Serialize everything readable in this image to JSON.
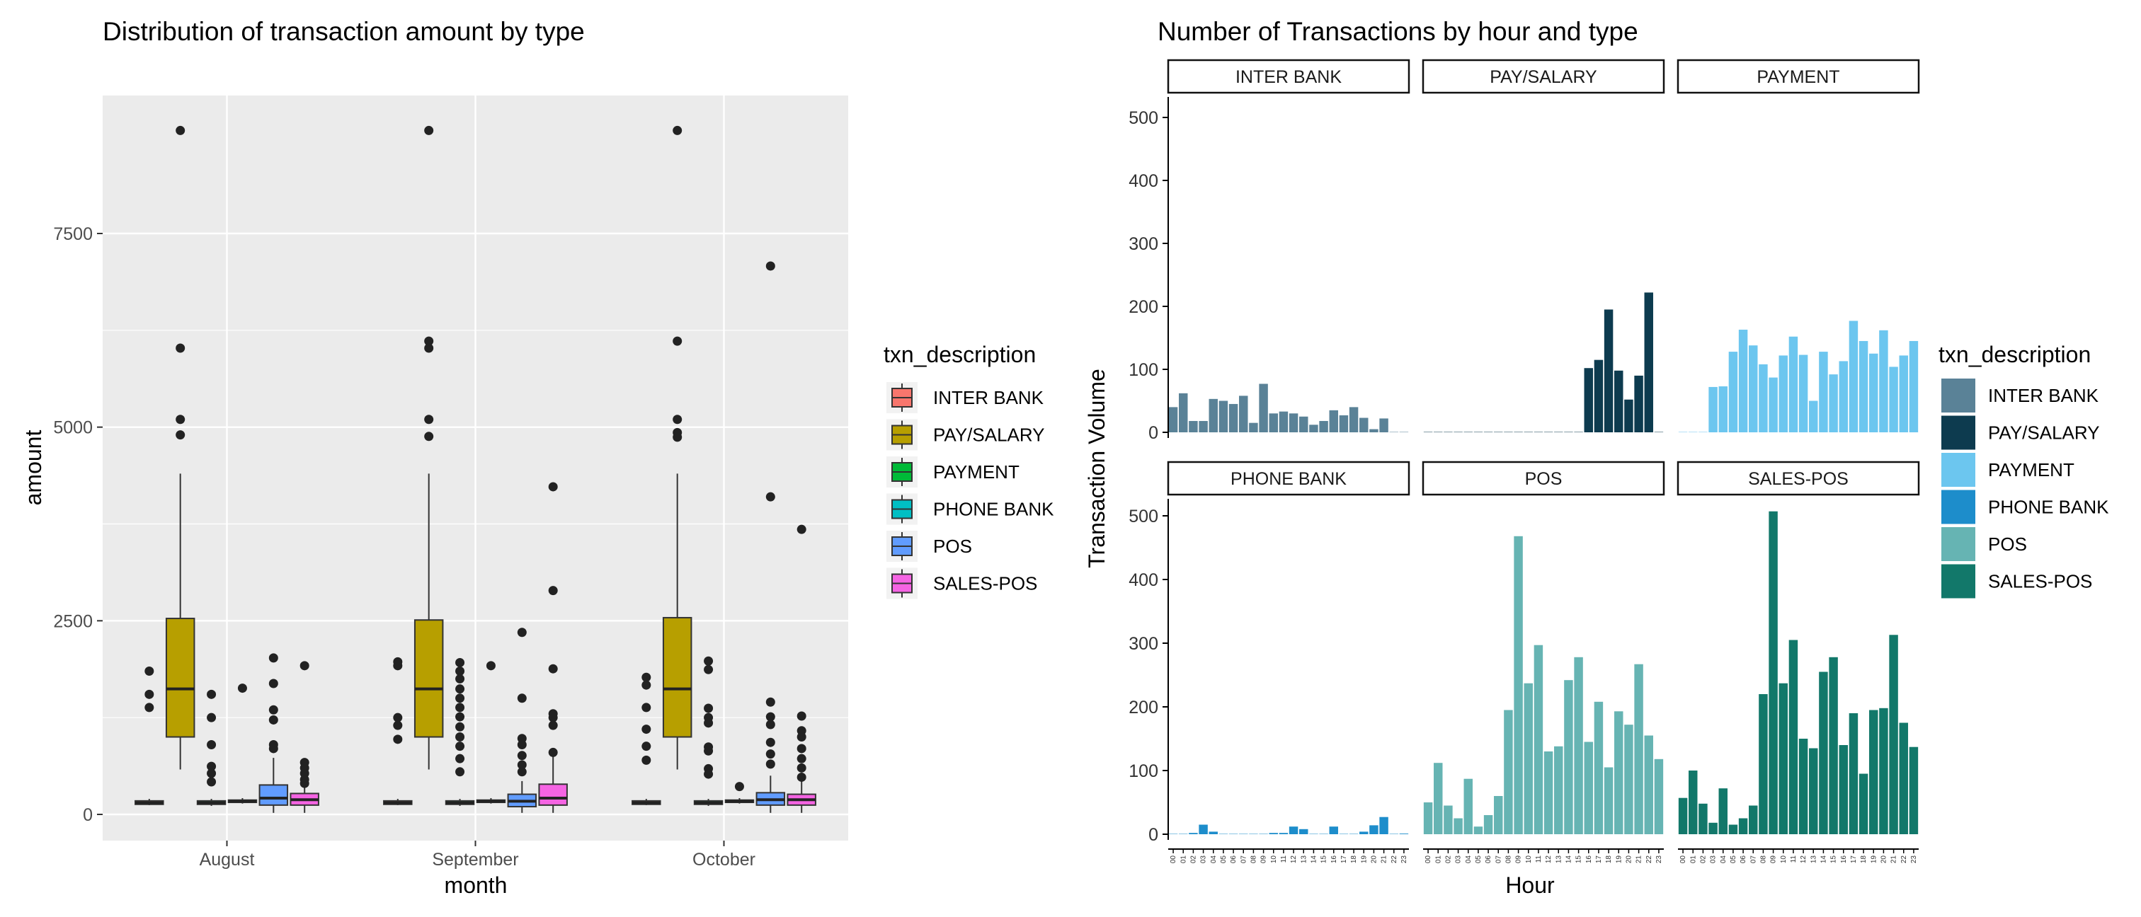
{
  "chart_data": [
    {
      "type": "boxplot",
      "title": "Distribution of transaction amount by type",
      "xlabel": "month",
      "ylabel": "amount",
      "ylim": [
        -250,
        9200
      ],
      "yticks": [
        0,
        2500,
        5000,
        7500
      ],
      "categories": [
        "August",
        "September",
        "October"
      ],
      "grid": "on (grey panel, white lines)",
      "legend": {
        "position": "right",
        "title": "txn_description",
        "items": [
          {
            "label": "INTER BANK",
            "color": "#F8766D"
          },
          {
            "label": "PAY/SALARY",
            "color": "#B79F00"
          },
          {
            "label": "PAYMENT",
            "color": "#00BA38"
          },
          {
            "label": "PHONE BANK",
            "color": "#00BFC4"
          },
          {
            "label": "POS",
            "color": "#619CFF"
          },
          {
            "label": "SALES-POS",
            "color": "#F564E3"
          }
        ]
      },
      "boxes": [
        {
          "month": "August",
          "type": "INTER BANK",
          "min": 120,
          "q1": 130,
          "median": 150,
          "q3": 175,
          "max": 200,
          "outliers": [
            1850,
            1550,
            1380
          ]
        },
        {
          "month": "August",
          "type": "PAY/SALARY",
          "min": 580,
          "q1": 1000,
          "median": 1620,
          "q3": 2530,
          "max": 4400,
          "outliers": [
            8830,
            6020,
            5100,
            4900
          ]
        },
        {
          "month": "August",
          "type": "PAYMENT",
          "min": 110,
          "q1": 130,
          "median": 150,
          "q3": 175,
          "max": 200,
          "outliers": [
            1550,
            1250,
            900,
            620,
            530,
            420
          ]
        },
        {
          "month": "August",
          "type": "PHONE BANK",
          "min": 140,
          "q1": 155,
          "median": 170,
          "q3": 185,
          "max": 210,
          "outliers": [
            1630
          ]
        },
        {
          "month": "August",
          "type": "POS",
          "min": 20,
          "q1": 120,
          "median": 210,
          "q3": 380,
          "max": 730,
          "outliers": [
            2020,
            1690,
            1350,
            1220,
            900,
            850
          ]
        },
        {
          "month": "August",
          "type": "SALES-POS",
          "min": 20,
          "q1": 120,
          "median": 190,
          "q3": 270,
          "max": 360,
          "outliers": [
            1920,
            670,
            600,
            530,
            450,
            400
          ]
        },
        {
          "month": "September",
          "type": "INTER BANK",
          "min": 120,
          "q1": 130,
          "median": 150,
          "q3": 175,
          "max": 200,
          "outliers": [
            1970,
            1920,
            1250,
            1150,
            970
          ]
        },
        {
          "month": "September",
          "type": "PAY/SALARY",
          "min": 580,
          "q1": 1000,
          "median": 1620,
          "q3": 2510,
          "max": 4400,
          "outliers": [
            8830,
            6110,
            6020,
            5100,
            4880
          ]
        },
        {
          "month": "September",
          "type": "PAYMENT",
          "min": 110,
          "q1": 130,
          "median": 150,
          "q3": 175,
          "max": 200,
          "outliers": [
            1960,
            1850,
            1750,
            1620,
            1500,
            1380,
            1260,
            1130,
            1000,
            880,
            720,
            550
          ]
        },
        {
          "month": "September",
          "type": "PHONE BANK",
          "min": 140,
          "q1": 155,
          "median": 170,
          "q3": 185,
          "max": 210,
          "outliers": [
            1920
          ]
        },
        {
          "month": "September",
          "type": "POS",
          "min": 20,
          "q1": 100,
          "median": 170,
          "q3": 260,
          "max": 430,
          "outliers": [
            2350,
            1500,
            980,
            900,
            760,
            640,
            550
          ]
        },
        {
          "month": "September",
          "type": "SALES-POS",
          "min": 20,
          "q1": 120,
          "median": 210,
          "q3": 390,
          "max": 780,
          "outliers": [
            4230,
            2890,
            1880,
            1300,
            1250,
            1150,
            800
          ]
        },
        {
          "month": "October",
          "type": "INTER BANK",
          "min": 120,
          "q1": 130,
          "median": 150,
          "q3": 175,
          "max": 200,
          "outliers": [
            1770,
            1670,
            1380,
            1100,
            880,
            700
          ]
        },
        {
          "month": "October",
          "type": "PAY/SALARY",
          "min": 580,
          "q1": 1000,
          "median": 1620,
          "q3": 2540,
          "max": 4400,
          "outliers": [
            8830,
            6110,
            5100,
            4930,
            4870
          ]
        },
        {
          "month": "October",
          "type": "PAYMENT",
          "min": 110,
          "q1": 130,
          "median": 150,
          "q3": 175,
          "max": 200,
          "outliers": [
            1980,
            1870,
            1370,
            1250,
            1180,
            870,
            820,
            590,
            520
          ]
        },
        {
          "month": "October",
          "type": "PHONE BANK",
          "min": 140,
          "q1": 155,
          "median": 170,
          "q3": 185,
          "max": 210,
          "outliers": [
            360
          ]
        },
        {
          "month": "October",
          "type": "POS",
          "min": 20,
          "q1": 120,
          "median": 190,
          "q3": 280,
          "max": 500,
          "outliers": [
            7080,
            4100,
            1450,
            1260,
            1160,
            930,
            780,
            650
          ]
        },
        {
          "month": "October",
          "type": "SALES-POS",
          "min": 20,
          "q1": 120,
          "median": 190,
          "q3": 260,
          "max": 520,
          "outliers": [
            3680,
            1270,
            1080,
            1000,
            850,
            720,
            600,
            480
          ]
        }
      ]
    },
    {
      "type": "bar",
      "title": "Number of Transactions by hour and type",
      "xlabel": "Hour",
      "ylabel": "Transaction Volume",
      "ylim": [
        0,
        520
      ],
      "yticks": [
        0,
        100,
        200,
        300,
        400,
        500
      ],
      "categories": [
        "00",
        "01",
        "02",
        "03",
        "04",
        "05",
        "06",
        "07",
        "08",
        "09",
        "10",
        "11",
        "12",
        "13",
        "14",
        "15",
        "16",
        "17",
        "18",
        "19",
        "20",
        "21",
        "22",
        "23"
      ],
      "legend": {
        "position": "right",
        "title": "txn_description",
        "items": [
          {
            "label": "INTER BANK",
            "color": "#5A8297"
          },
          {
            "label": "PAY/SALARY",
            "color": "#0D3B4F"
          },
          {
            "label": "PAYMENT",
            "color": "#6CC6EF"
          },
          {
            "label": "PHONE BANK",
            "color": "#1D8DCB"
          },
          {
            "label": "POS",
            "color": "#66B4B3"
          },
          {
            "label": "SALES-POS",
            "color": "#12786A"
          }
        ]
      },
      "facets": [
        {
          "name": "INTER BANK",
          "values": [
            40,
            62,
            18,
            18,
            53,
            50,
            45,
            58,
            15,
            77,
            30,
            33,
            30,
            25,
            12,
            18,
            35,
            27,
            40,
            23,
            5,
            22,
            0,
            0
          ]
        },
        {
          "name": "PAY/SALARY",
          "values": [
            0,
            0,
            0,
            0,
            0,
            0,
            0,
            0,
            0,
            0,
            0,
            0,
            0,
            0,
            0,
            0,
            102,
            115,
            195,
            98,
            52,
            90,
            222,
            0
          ]
        },
        {
          "name": "PAYMENT",
          "values": [
            0,
            0,
            0,
            72,
            73,
            128,
            163,
            138,
            108,
            87,
            122,
            152,
            123,
            50,
            128,
            92,
            113,
            177,
            145,
            125,
            162,
            104,
            122,
            145
          ]
        },
        {
          "name": "PHONE BANK",
          "values": [
            0,
            0,
            2,
            15,
            4,
            0,
            0,
            0,
            0,
            0,
            2,
            2,
            12,
            8,
            0,
            0,
            12,
            0,
            0,
            4,
            14,
            27,
            0,
            1
          ]
        },
        {
          "name": "POS",
          "values": [
            50,
            112,
            45,
            25,
            87,
            12,
            30,
            60,
            195,
            468,
            237,
            297,
            130,
            138,
            242,
            278,
            145,
            208,
            105,
            193,
            172,
            267,
            155,
            118
          ]
        },
        {
          "name": "SALES-POS",
          "values": [
            57,
            100,
            48,
            18,
            72,
            15,
            25,
            45,
            220,
            507,
            237,
            305,
            150,
            135,
            255,
            278,
            140,
            190,
            95,
            195,
            198,
            313,
            175,
            137
          ]
        }
      ]
    }
  ]
}
